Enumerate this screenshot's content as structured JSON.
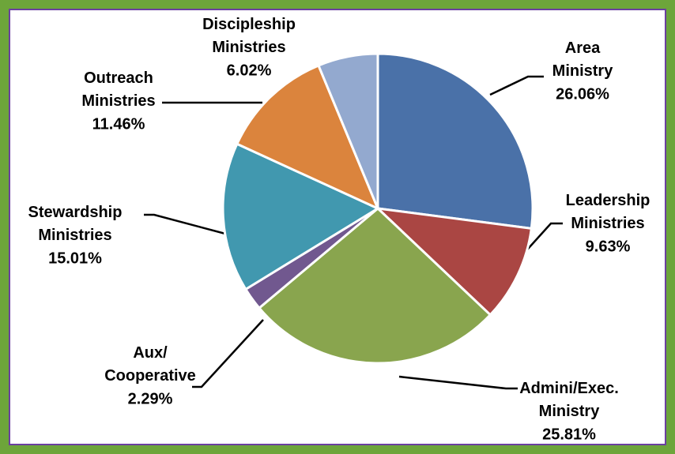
{
  "chart_data": {
    "type": "pie",
    "categories": [
      "Area Ministry",
      "Leadership Ministries",
      "Admini/Exec. Ministry",
      "Aux/ Cooperative",
      "Stewardship Ministries",
      "Outreach Ministries",
      "Discipleship Ministries"
    ],
    "values": [
      26.06,
      9.63,
      25.81,
      2.29,
      15.01,
      11.46,
      6.02
    ],
    "value_labels": [
      "26.06%",
      "9.63%",
      "25.81%",
      "2.29%",
      "15.01%",
      "11.46%",
      "6.02%"
    ],
    "colors": [
      "#4a71a8",
      "#aa4643",
      "#89a54e",
      "#71588f",
      "#4198af",
      "#db843d",
      "#93a9cf"
    ]
  }
}
